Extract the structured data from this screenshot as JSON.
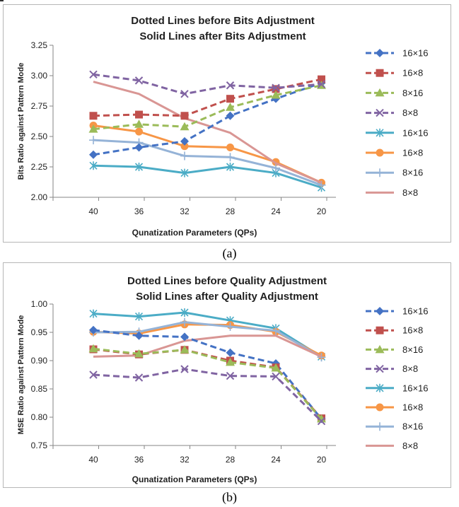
{
  "captions": [
    "(a)",
    "(b)"
  ],
  "chart_data": [
    {
      "type": "line",
      "title": [
        "Dotted Lines before Bits Adjustment",
        "Solid Lines after Bits Adjustment"
      ],
      "xlabel": "Qunatization Parameters (QPs)",
      "ylabel": "Bits Ratio against Pattern Mode",
      "categories": [
        "40",
        "36",
        "32",
        "28",
        "24",
        "20"
      ],
      "ylim": [
        2.0,
        3.25
      ],
      "yticks": [
        2.0,
        2.25,
        2.5,
        2.75,
        3.0,
        3.25
      ],
      "ytick_labels": [
        "2.00",
        "2.25",
        "2.50",
        "2.75",
        "3.00",
        "3.25"
      ],
      "legend_position": "right",
      "series": [
        {
          "name": "16×16",
          "style": "dashed",
          "marker": "diamond",
          "color": "#4472c4",
          "values": [
            2.35,
            2.41,
            2.46,
            2.67,
            2.81,
            2.94
          ]
        },
        {
          "name": "16×8",
          "style": "dashed",
          "marker": "square",
          "color": "#c0504d",
          "values": [
            2.67,
            2.68,
            2.67,
            2.81,
            2.89,
            2.97
          ]
        },
        {
          "name": "8×16",
          "style": "dashed",
          "marker": "triangle",
          "color": "#9bbb59",
          "values": [
            2.56,
            2.6,
            2.58,
            2.74,
            2.84,
            2.92
          ]
        },
        {
          "name": "8×8",
          "style": "dashed",
          "marker": "x",
          "color": "#8064a2",
          "values": [
            3.01,
            2.96,
            2.85,
            2.92,
            2.9,
            2.93
          ]
        },
        {
          "name": "16×16",
          "style": "solid",
          "marker": "star",
          "color": "#4bacc6",
          "values": [
            2.26,
            2.25,
            2.2,
            2.25,
            2.2,
            2.08
          ]
        },
        {
          "name": "16×8",
          "style": "solid",
          "marker": "circle",
          "color": "#f79646",
          "values": [
            2.59,
            2.54,
            2.42,
            2.41,
            2.29,
            2.12
          ]
        },
        {
          "name": "8×16",
          "style": "solid",
          "marker": "plus",
          "color": "#95b3d7",
          "values": [
            2.47,
            2.45,
            2.34,
            2.33,
            2.24,
            2.1
          ]
        },
        {
          "name": "8×8",
          "style": "solid",
          "marker": "none",
          "color": "#d99694",
          "values": [
            2.95,
            2.85,
            2.65,
            2.53,
            2.28,
            2.12
          ]
        }
      ]
    },
    {
      "type": "line",
      "title": [
        "Dotted Lines before Quality Adjustment",
        "Solid Lines after Quality Adjustment"
      ],
      "xlabel": "Qunatization Parameters (QPs)",
      "ylabel": "MSE Ratio against Pattern Mode",
      "categories": [
        "40",
        "36",
        "32",
        "28",
        "24",
        "20"
      ],
      "ylim": [
        0.75,
        1.0
      ],
      "yticks": [
        0.75,
        0.8,
        0.85,
        0.9,
        0.95,
        1.0
      ],
      "ytick_labels": [
        "0.75",
        "0.80",
        "0.85",
        "0.90",
        "0.95",
        "1.00"
      ],
      "legend_position": "right",
      "series": [
        {
          "name": "16×16",
          "style": "dashed",
          "marker": "diamond",
          "color": "#4472c4",
          "values": [
            0.954,
            0.944,
            0.942,
            0.914,
            0.895,
            0.797
          ]
        },
        {
          "name": "16×8",
          "style": "dashed",
          "marker": "square",
          "color": "#c0504d",
          "values": [
            0.92,
            0.911,
            0.919,
            0.9,
            0.888,
            0.798
          ]
        },
        {
          "name": "8×16",
          "style": "dashed",
          "marker": "triangle",
          "color": "#9bbb59",
          "values": [
            0.921,
            0.912,
            0.919,
            0.897,
            0.887,
            0.797
          ]
        },
        {
          "name": "8×8",
          "style": "dashed",
          "marker": "x",
          "color": "#8064a2",
          "values": [
            0.875,
            0.87,
            0.885,
            0.873,
            0.872,
            0.793
          ]
        },
        {
          "name": "16×16",
          "style": "solid",
          "marker": "star",
          "color": "#4bacc6",
          "values": [
            0.983,
            0.978,
            0.985,
            0.971,
            0.957,
            0.907
          ]
        },
        {
          "name": "16×8",
          "style": "solid",
          "marker": "circle",
          "color": "#f79646",
          "values": [
            0.951,
            0.948,
            0.964,
            0.963,
            0.951,
            0.909
          ]
        },
        {
          "name": "8×16",
          "style": "solid",
          "marker": "plus",
          "color": "#95b3d7",
          "values": [
            0.95,
            0.951,
            0.968,
            0.96,
            0.953,
            0.906
          ]
        },
        {
          "name": "8×8",
          "style": "solid",
          "marker": "none",
          "color": "#d99694",
          "values": [
            0.907,
            0.909,
            0.935,
            0.944,
            0.944,
            0.907
          ]
        }
      ]
    }
  ]
}
